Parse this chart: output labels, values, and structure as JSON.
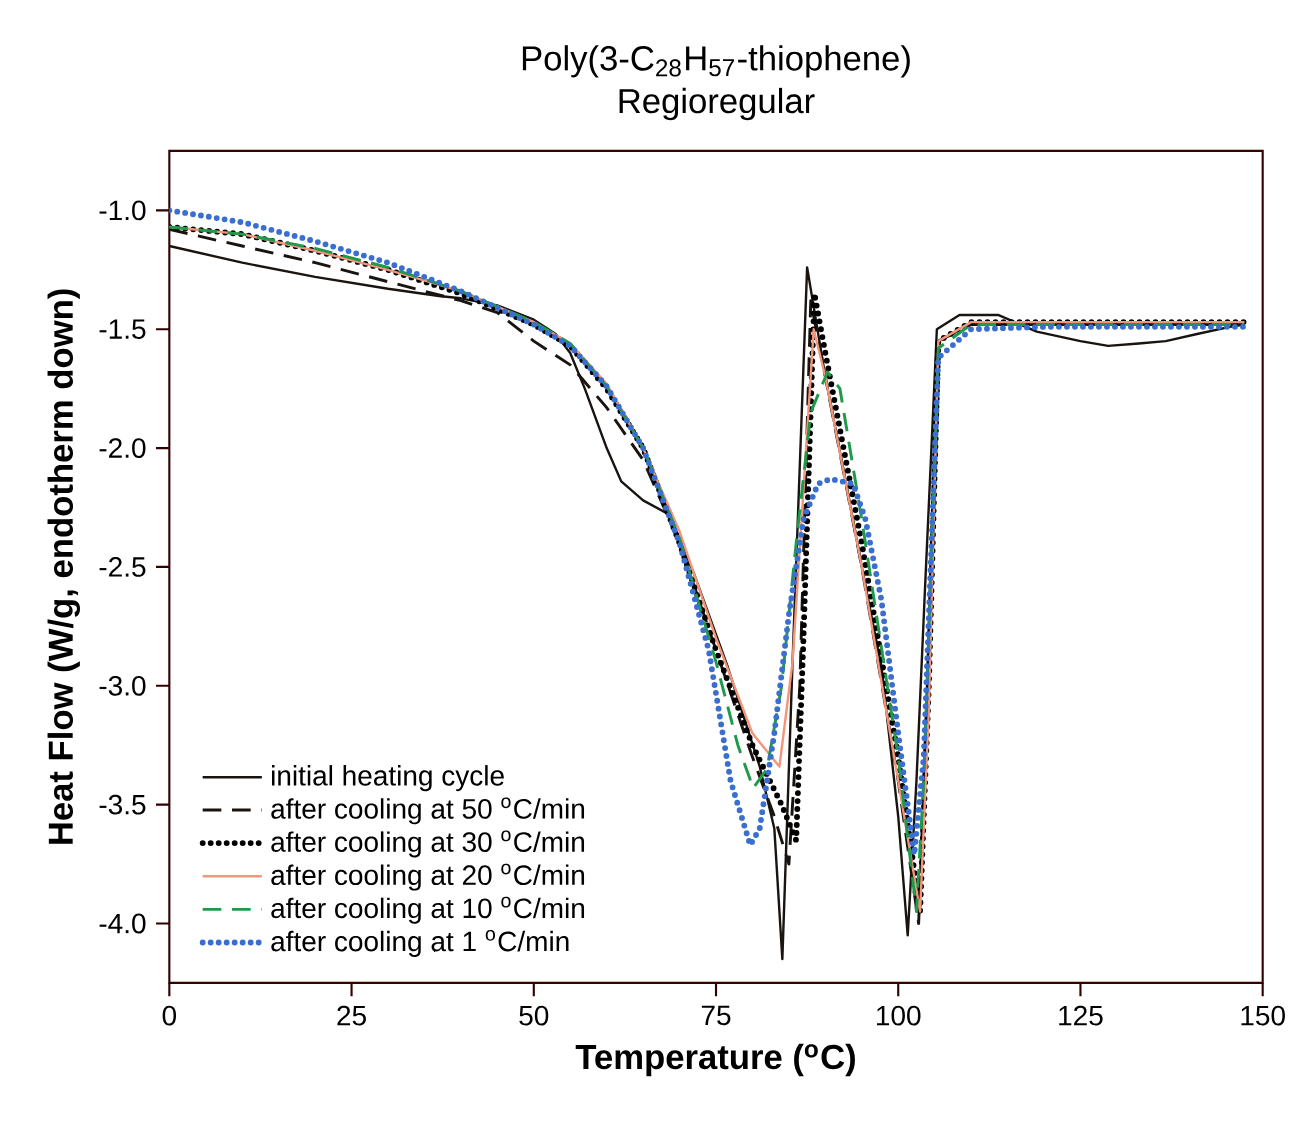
{
  "chart_data": {
    "type": "line",
    "title": "Poly(3-C$_{28}$H$_{57}$-thiophene)",
    "subtitle": "Regioregular",
    "xlabel": "Temperature ($^{o}$C)",
    "ylabel": "Heat Flow (W/g, endotherm down)",
    "xlim": [
      0,
      150
    ],
    "xticks": [
      0,
      25,
      50,
      75,
      100,
      125,
      150
    ],
    "ylim": [
      -4.25,
      -0.75
    ],
    "yticks": [
      {
        "value": -4.0,
        "label": "-4.0"
      },
      {
        "value": -3.5,
        "label": "-3.5"
      },
      {
        "value": -3.0,
        "label": "-3.0"
      },
      {
        "value": -2.5,
        "label": "-2.5"
      },
      {
        "value": -2.0,
        "label": "-2.0"
      },
      {
        "value": -1.5,
        "label": "-1.5"
      },
      {
        "value": -1.0,
        "label": "-1.0"
      }
    ],
    "grid": false,
    "legend": "bottom left",
    "marker": "none",
    "series": [
      {
        "name": "initial heating cycle",
        "color": "#1a1410",
        "line_style": "solid",
        "x": [
          0,
          10,
          20,
          30,
          37,
          40,
          45,
          50,
          53,
          55,
          57,
          60,
          62,
          65,
          68.6,
          72,
          76.6,
          81,
          83,
          84.1,
          85.5,
          87.5,
          90,
          92.4,
          95,
          97.7,
          100,
          101.3,
          102.5,
          103.6,
          105.3,
          108.4,
          113.7,
          119,
          125,
          128.8,
          133,
          136.7,
          141,
          145.5,
          147.5
        ],
        "values": [
          -1.15,
          -1.22,
          -1.28,
          -1.33,
          -1.36,
          -1.37,
          -1.4,
          -1.46,
          -1.52,
          -1.6,
          -1.75,
          -2.0,
          -2.14,
          -2.22,
          -2.28,
          -2.53,
          -2.92,
          -3.34,
          -3.6,
          -4.15,
          -2.9,
          -1.24,
          -1.7,
          -2.08,
          -2.5,
          -2.92,
          -3.55,
          -4.05,
          -3.4,
          -2.64,
          -1.5,
          -1.44,
          -1.44,
          -1.51,
          -1.55,
          -1.57,
          -1.56,
          -1.55,
          -1.52,
          -1.49,
          -1.48
        ]
      },
      {
        "name": "after cooling at 50 $^{o}$C/min",
        "color": "#1a1410",
        "line_style": "dashed",
        "x": [
          0,
          10,
          20,
          30,
          40,
          45,
          50,
          55,
          60,
          65,
          70,
          75,
          80,
          83,
          85,
          86.5,
          88,
          90,
          95,
          100,
          102.8,
          104,
          105.5,
          110,
          120,
          130,
          140,
          147.5
        ],
        "values": [
          -1.08,
          -1.15,
          -1.22,
          -1.3,
          -1.38,
          -1.43,
          -1.55,
          -1.65,
          -1.83,
          -2.05,
          -2.4,
          -2.85,
          -3.3,
          -3.55,
          -3.75,
          -3.0,
          -1.38,
          -1.7,
          -2.5,
          -3.4,
          -4.0,
          -3.0,
          -1.55,
          -1.48,
          -1.48,
          -1.48,
          -1.48,
          -1.48
        ]
      },
      {
        "name": "after cooling at 30 $^{o}$C/min",
        "color": "#000000",
        "line_style": "dotted",
        "x": [
          0,
          10,
          20,
          30,
          40,
          50,
          55,
          60,
          65,
          70,
          75,
          80,
          84,
          86,
          87,
          88.5,
          90,
          95,
          100,
          103,
          104.2,
          105.5,
          110,
          120,
          130,
          140,
          147.5
        ],
        "values": [
          -1.07,
          -1.1,
          -1.17,
          -1.25,
          -1.35,
          -1.48,
          -1.57,
          -1.75,
          -2.0,
          -2.4,
          -2.85,
          -3.25,
          -3.5,
          -3.65,
          -2.8,
          -1.35,
          -1.6,
          -2.4,
          -3.3,
          -3.95,
          -3.0,
          -1.55,
          -1.47,
          -1.47,
          -1.47,
          -1.47,
          -1.47
        ]
      },
      {
        "name": "after cooling at 20 $^{o}$C/min",
        "color": "#f2957a",
        "line_style": "solid",
        "x": [
          0,
          10,
          20,
          30,
          40,
          50,
          55,
          60,
          65,
          70,
          75,
          80,
          83.7,
          85.5,
          88.4,
          90,
          95,
          100,
          103,
          104.2,
          105.5,
          110,
          120,
          130,
          140,
          147.5
        ],
        "values": [
          -1.07,
          -1.1,
          -1.17,
          -1.25,
          -1.34,
          -1.47,
          -1.56,
          -1.73,
          -2.0,
          -2.35,
          -2.8,
          -3.2,
          -3.34,
          -2.9,
          -1.5,
          -1.7,
          -2.5,
          -3.4,
          -3.95,
          -3.1,
          -1.55,
          -1.47,
          -1.47,
          -1.47,
          -1.47,
          -1.47
        ]
      },
      {
        "name": "after cooling at 10 $^{o}$C/min",
        "color": "#1f9a4a",
        "line_style": "dashed",
        "x": [
          0,
          10,
          20,
          30,
          40,
          50,
          55,
          60,
          65,
          70,
          75,
          78,
          80.1,
          82,
          84,
          86,
          88,
          90.3,
          92,
          95,
          100,
          102.5,
          103.5,
          105.5,
          110,
          120,
          130,
          140,
          147.5
        ],
        "values": [
          -1.07,
          -1.1,
          -1.16,
          -1.24,
          -1.34,
          -1.47,
          -1.56,
          -1.74,
          -2.0,
          -2.38,
          -2.9,
          -3.25,
          -3.43,
          -3.35,
          -3.0,
          -2.4,
          -1.85,
          -1.68,
          -1.75,
          -2.3,
          -3.3,
          -3.95,
          -3.4,
          -1.58,
          -1.48,
          -1.48,
          -1.48,
          -1.48,
          -1.48
        ]
      },
      {
        "name": "after cooling at 1 $^{o}$C/min",
        "color": "#3a6fd0",
        "line_style": "dotted",
        "x": [
          0,
          10,
          20,
          30,
          40,
          50,
          55,
          60,
          65,
          70,
          74,
          77,
          79.7,
          81,
          83,
          85,
          87,
          89,
          90.7,
          93.8,
          95.5,
          97.7,
          100,
          102.2,
          103.5,
          105.5,
          110,
          120,
          130,
          140,
          147.5
        ],
        "values": [
          -1.0,
          -1.05,
          -1.13,
          -1.22,
          -1.34,
          -1.48,
          -1.57,
          -1.74,
          -2.0,
          -2.4,
          -2.85,
          -3.4,
          -3.67,
          -3.6,
          -3.2,
          -2.7,
          -2.3,
          -2.15,
          -2.13,
          -2.15,
          -2.3,
          -2.64,
          -3.2,
          -3.71,
          -3.3,
          -1.62,
          -1.5,
          -1.49,
          -1.49,
          -1.49,
          -1.49
        ]
      }
    ]
  }
}
